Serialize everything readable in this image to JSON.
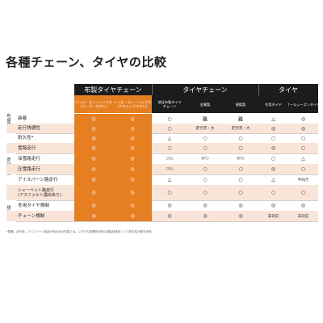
{
  "title": "各種チェーン、タイヤの比較",
  "groups": [
    {
      "label": "布製タイヤチェーン"
    },
    {
      "label": "タイヤチェーン"
    },
    {
      "label": "タイヤ"
    }
  ],
  "columns": [
    {
      "label": "イッセ・スノーソックス\n(スーパーモデル)",
      "highlight": true
    },
    {
      "label": "イッセ・スノーソックス\n(クラシックモデル)",
      "highlight": true
    },
    {
      "label": "他社布製タイヤ\nチェーン",
      "highlight": false
    },
    {
      "label": "金属製",
      "highlight": false
    },
    {
      "label": "樹脂製",
      "highlight": false
    },
    {
      "label": "冬用タイヤ",
      "highlight": false
    },
    {
      "label": "オールシーズンタイヤ",
      "highlight": false
    }
  ],
  "categories": [
    {
      "label": "利便性"
    },
    {
      "label": "走行性能"
    },
    {
      "label": "規制"
    }
  ],
  "rows": [
    {
      "label": "装着",
      "cells": [
        "◎",
        "◎",
        "○",
        "難",
        "難",
        "△",
        "◎"
      ]
    },
    {
      "label": "走行快適性",
      "cells": [
        "◎",
        "◎",
        "○",
        "走行音・大",
        "走行音・大",
        "◎",
        "◎"
      ]
    },
    {
      "label": "耐久性*",
      "cells": [
        "◎",
        "◎",
        "△",
        "○",
        "○",
        "○",
        "○"
      ]
    },
    {
      "label": "雪路走行",
      "cells": [
        "◎",
        "◎",
        "○",
        "○",
        "○",
        "◎",
        "○"
      ]
    },
    {
      "label": "深雪路走行",
      "cells": [
        "◎",
        "◎",
        "○/△",
        "◎/○",
        "◎/○",
        "○",
        "△"
      ]
    },
    {
      "label": "圧雪路走行",
      "cells": [
        "◎",
        "◎",
        "○/△",
        "○",
        "○",
        "◎",
        "○"
      ]
    },
    {
      "label": "アイスバーン路走行",
      "cells": [
        "◎",
        "◎",
        "△",
        "○",
        "○",
        "△",
        "不向き"
      ]
    },
    {
      "label": "シャーベット路走行\n(アスファルト露出あり)",
      "cells": [
        "◎",
        "◎",
        "○",
        "○",
        "○",
        "○",
        "○"
      ]
    },
    {
      "label": "冬用タイヤ規制",
      "cells": [
        "◎",
        "◎",
        "◎",
        "◎",
        "◎",
        "◎",
        "◎"
      ]
    },
    {
      "label": "チェーン規制",
      "cells": [
        "◎",
        "◎",
        "◎",
        "◎",
        "◎",
        "非対応",
        "非対応"
      ]
    }
  ],
  "footnote": "*整備、走行時、アイスバーン路走行時の走行性能では、いずれも指標的利用の運転評価をとって耐久性比較を評価"
}
